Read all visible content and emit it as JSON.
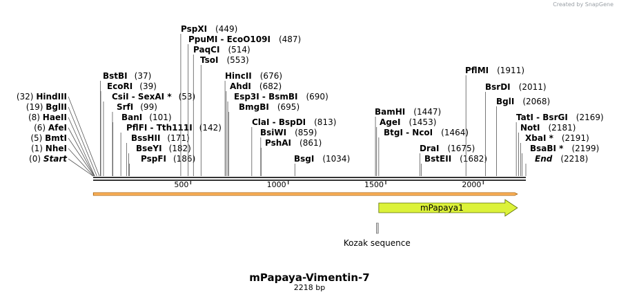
{
  "watermark": "Created by SnapGene",
  "title": "mPapaya-Vimentin-7",
  "length_label": "2218 bp",
  "sequence_length": 2218,
  "ruler_ticks": [
    500,
    1000,
    1500,
    2000
  ],
  "colors": {
    "line": "#333333",
    "orf_fill": "#fdb35c",
    "orf_stroke": "#a05a00",
    "feature_fill": "#dcf23a",
    "feature_stroke": "#5a6b00",
    "kozak_fill": "#c8c8c8"
  },
  "sites_left": [
    {
      "name": "Start",
      "position": "(0)",
      "italic": true
    },
    {
      "name": "NheI",
      "position": "(1)"
    },
    {
      "name": "BmtI",
      "position": "(5)"
    },
    {
      "name": "AfeI",
      "position": "(6)"
    },
    {
      "name": "HaeII",
      "position": "(8)"
    },
    {
      "name": "BglII",
      "position": "(19)"
    },
    {
      "name": "HindIII",
      "position": "(32)"
    }
  ],
  "sites_column2": [
    {
      "name": "BstBI",
      "position": "(37)"
    },
    {
      "name": "EcoRI",
      "position": "(39)"
    },
    {
      "name": "CsiI  -  SexAI *",
      "position": "(53)"
    },
    {
      "name": "SrfI",
      "position": "(99)"
    },
    {
      "name": "BanI",
      "position": "(101)"
    },
    {
      "name": "PflFI  -  Tth111I",
      "position": "(142)"
    },
    {
      "name": "BssHII",
      "position": "(171)"
    },
    {
      "name": "BseYI",
      "position": "(182)"
    },
    {
      "name": "PspFI",
      "position": "(186)"
    }
  ],
  "sites_top": [
    {
      "name": "PspXI",
      "position": "(449)"
    },
    {
      "name": "PpuMI  -  EcoO109I",
      "position": "(487)"
    },
    {
      "name": "PaqCI",
      "position": "(514)"
    },
    {
      "name": "TsoI",
      "position": "(553)"
    }
  ],
  "sites_mid": [
    {
      "name": "HincII",
      "position": "(676)"
    },
    {
      "name": "AhdI",
      "position": "(682)"
    },
    {
      "name": "Esp3I  -  BsmBI",
      "position": "(690)"
    },
    {
      "name": "BmgBI",
      "position": "(695)"
    },
    {
      "name": "ClaI  -  BspDI",
      "position": "(813)"
    },
    {
      "name": "BsiWI",
      "position": "(859)"
    },
    {
      "name": "PshAI",
      "position": "(861)"
    },
    {
      "name": "BsgI",
      "position": "(1034)"
    }
  ],
  "sites_right": [
    {
      "name": "BamHI",
      "position": "(1447)"
    },
    {
      "name": "AgeI",
      "position": "(1453)"
    },
    {
      "name": "BtgI  -  NcoI",
      "position": "(1464)"
    },
    {
      "name": "DraI",
      "position": "(1675)"
    },
    {
      "name": "BstEII",
      "position": "(1682)"
    },
    {
      "name": "PflMI",
      "position": "(1911)"
    },
    {
      "name": "BsrDI",
      "position": "(2011)"
    },
    {
      "name": "BglI",
      "position": "(2068)"
    },
    {
      "name": "TatI  -  BsrGI",
      "position": "(2169)"
    },
    {
      "name": "NotI",
      "position": "(2181)"
    },
    {
      "name": "XbaI *",
      "position": "(2191)"
    },
    {
      "name": "BsaBI *",
      "position": "(2199)"
    },
    {
      "name": "End",
      "position": "(2218)",
      "italic": true
    }
  ],
  "features": [
    {
      "name": "mPapaya1",
      "start": 1464,
      "end": 2175,
      "type": "cds"
    },
    {
      "name": "Kozak sequence",
      "start": 1455,
      "end": 1465,
      "type": "kozak"
    }
  ],
  "orf": {
    "start": 1,
    "end": 2175
  }
}
